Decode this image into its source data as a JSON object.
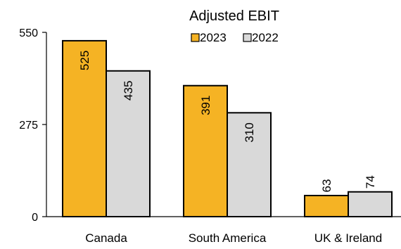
{
  "chart_data": {
    "type": "bar",
    "title": "Adjusted EBIT",
    "categories": [
      "Canada",
      "South America",
      "UK & Ireland"
    ],
    "series": [
      {
        "name": "2023",
        "values": [
          525,
          391,
          63
        ],
        "color": "#F5B324"
      },
      {
        "name": "2022",
        "values": [
          435,
          310,
          74
        ],
        "color": "#D9D9D9"
      }
    ],
    "yticks": [
      0,
      275,
      550
    ],
    "ylim": [
      0,
      550
    ],
    "legend_position": "top-center",
    "grid": false,
    "data_labels": true
  }
}
